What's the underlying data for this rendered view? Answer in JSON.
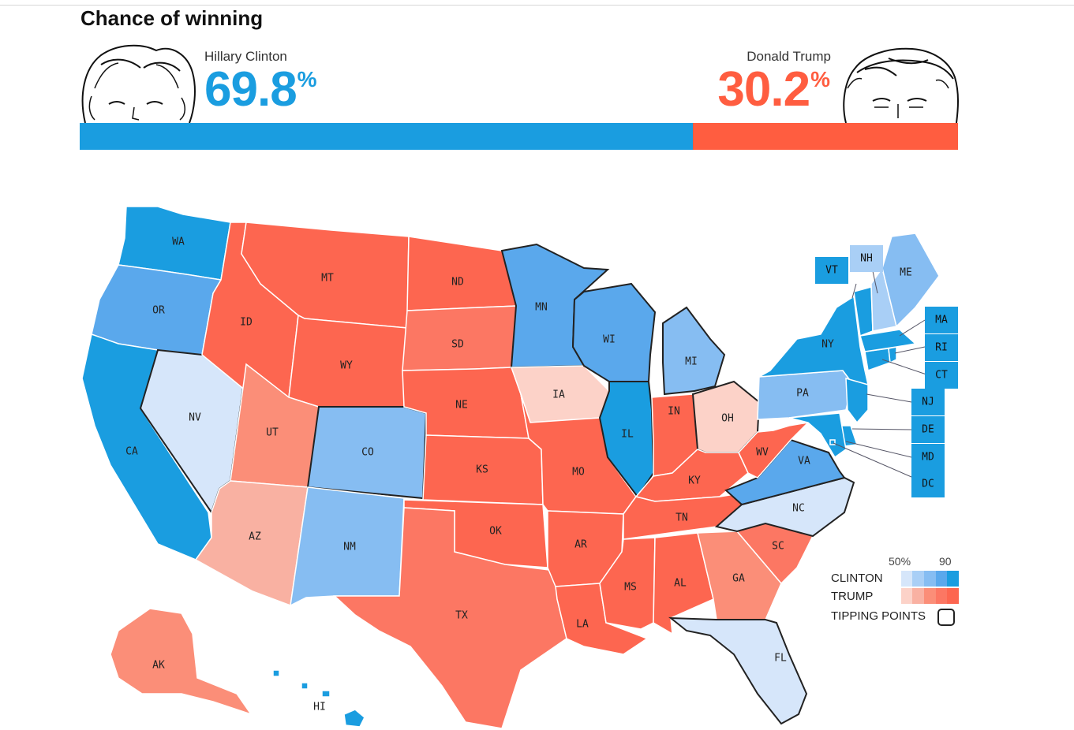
{
  "title": "Chance of winning",
  "clinton": {
    "name": "Hillary Clinton",
    "pct_value": "69.8",
    "pct_sign": "%",
    "chance": 69.8,
    "color": "#1a9de0"
  },
  "trump": {
    "name": "Donald Trump",
    "pct_value": "30.2",
    "pct_sign": "%",
    "chance": 30.2,
    "color": "#ff5d40"
  },
  "states": [
    {
      "abbr": "WA",
      "party": "clinton",
      "level": 5
    },
    {
      "abbr": "OR",
      "party": "clinton",
      "level": 4
    },
    {
      "abbr": "CA",
      "party": "clinton",
      "level": 5
    },
    {
      "abbr": "NV",
      "party": "clinton",
      "level": 1,
      "tipping": true
    },
    {
      "abbr": "ID",
      "party": "trump",
      "level": 5
    },
    {
      "abbr": "MT",
      "party": "trump",
      "level": 5
    },
    {
      "abbr": "WY",
      "party": "trump",
      "level": 5
    },
    {
      "abbr": "UT",
      "party": "trump",
      "level": 3
    },
    {
      "abbr": "AZ",
      "party": "trump",
      "level": 2
    },
    {
      "abbr": "CO",
      "party": "clinton",
      "level": 3,
      "tipping": true
    },
    {
      "abbr": "NM",
      "party": "clinton",
      "level": 3
    },
    {
      "abbr": "ND",
      "party": "trump",
      "level": 5
    },
    {
      "abbr": "SD",
      "party": "trump",
      "level": 4
    },
    {
      "abbr": "NE",
      "party": "trump",
      "level": 5
    },
    {
      "abbr": "KS",
      "party": "trump",
      "level": 5
    },
    {
      "abbr": "OK",
      "party": "trump",
      "level": 5
    },
    {
      "abbr": "TX",
      "party": "trump",
      "level": 4
    },
    {
      "abbr": "MN",
      "party": "clinton",
      "level": 4,
      "tipping": true
    },
    {
      "abbr": "IA",
      "party": "trump",
      "level": 1
    },
    {
      "abbr": "MO",
      "party": "trump",
      "level": 5
    },
    {
      "abbr": "AR",
      "party": "trump",
      "level": 5
    },
    {
      "abbr": "LA",
      "party": "trump",
      "level": 5
    },
    {
      "abbr": "WI",
      "party": "clinton",
      "level": 4,
      "tipping": true
    },
    {
      "abbr": "IL",
      "party": "clinton",
      "level": 5
    },
    {
      "abbr": "MI",
      "party": "clinton",
      "level": 3,
      "tipping": true
    },
    {
      "abbr": "IN",
      "party": "trump",
      "level": 5
    },
    {
      "abbr": "OH",
      "party": "trump",
      "level": 1,
      "tipping": true
    },
    {
      "abbr": "KY",
      "party": "trump",
      "level": 5
    },
    {
      "abbr": "TN",
      "party": "trump",
      "level": 5
    },
    {
      "abbr": "MS",
      "party": "trump",
      "level": 5
    },
    {
      "abbr": "AL",
      "party": "trump",
      "level": 5
    },
    {
      "abbr": "GA",
      "party": "trump",
      "level": 3
    },
    {
      "abbr": "FL",
      "party": "clinton",
      "level": 1,
      "tipping": true
    },
    {
      "abbr": "SC",
      "party": "trump",
      "level": 4
    },
    {
      "abbr": "NC",
      "party": "clinton",
      "level": 1,
      "tipping": true
    },
    {
      "abbr": "VA",
      "party": "clinton",
      "level": 4,
      "tipping": true
    },
    {
      "abbr": "WV",
      "party": "trump",
      "level": 5
    },
    {
      "abbr": "PA",
      "party": "clinton",
      "level": 3
    },
    {
      "abbr": "NY",
      "party": "clinton",
      "level": 5
    },
    {
      "abbr": "VT",
      "party": "clinton",
      "level": 5
    },
    {
      "abbr": "NH",
      "party": "clinton",
      "level": 2
    },
    {
      "abbr": "ME",
      "party": "clinton",
      "level": 3
    },
    {
      "abbr": "MA",
      "party": "clinton",
      "level": 5
    },
    {
      "abbr": "RI",
      "party": "clinton",
      "level": 5
    },
    {
      "abbr": "CT",
      "party": "clinton",
      "level": 5
    },
    {
      "abbr": "NJ",
      "party": "clinton",
      "level": 5
    },
    {
      "abbr": "DE",
      "party": "clinton",
      "level": 5
    },
    {
      "abbr": "MD",
      "party": "clinton",
      "level": 5
    },
    {
      "abbr": "DC",
      "party": "clinton",
      "level": 5
    },
    {
      "abbr": "AK",
      "party": "trump",
      "level": 3
    },
    {
      "abbr": "HI",
      "party": "clinton",
      "level": 5
    }
  ],
  "colors": {
    "clinton": [
      "#d6e6fa",
      "#a9cff6",
      "#86bdf2",
      "#5aa8ec",
      "#1a9de0"
    ],
    "trump": [
      "#fcd2c8",
      "#f9b1a2",
      "#fb8e78",
      "#fc7763",
      "#fd6650"
    ]
  },
  "legend": {
    "scale_low": "50%",
    "scale_high": "90",
    "clinton_label": "CLINTON",
    "trump_label": "TRUMP",
    "tipping_label": "TIPPING POINTS"
  }
}
